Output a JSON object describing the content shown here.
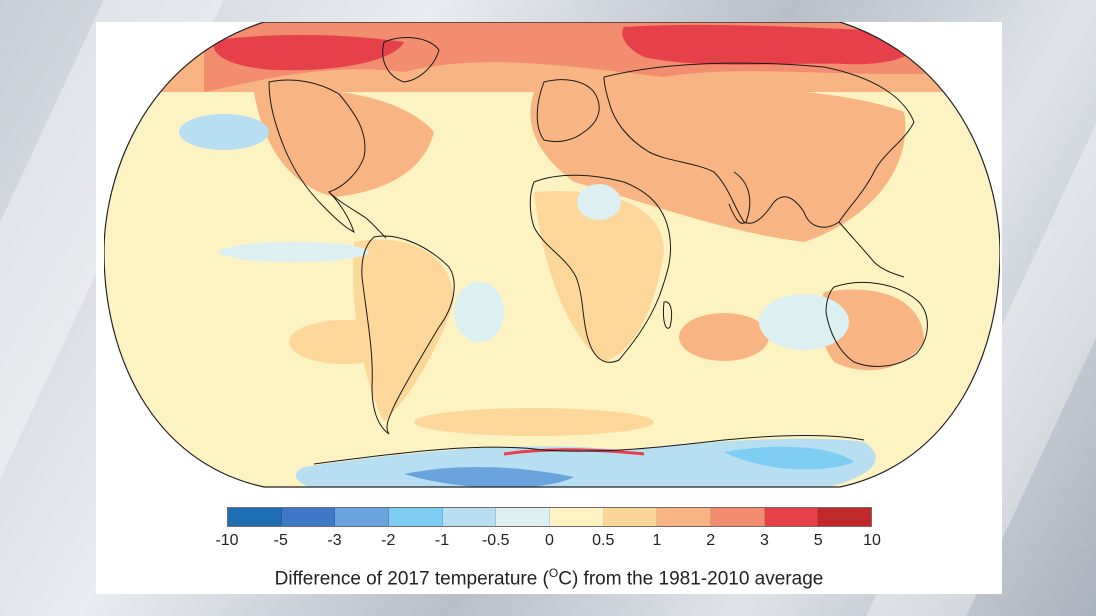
{
  "legend": {
    "colors": [
      "#1f6fb2",
      "#3f78c6",
      "#6aa3de",
      "#7ecdf2",
      "#b7def1",
      "#dcf0f2",
      "#fdf2c2",
      "#fdd79a",
      "#f8b483",
      "#f28d70",
      "#e6404b",
      "#c0282a"
    ],
    "ticks": [
      "-10",
      "-5",
      "-3",
      "-2",
      "-1",
      "-0.5",
      "0",
      "0.5",
      "1",
      "2",
      "3",
      "5",
      "10"
    ]
  },
  "caption": {
    "prefix": "Difference of 2017 temperature (",
    "superscript": "O",
    "unit_suffix": "C) from the 1981-2010 average"
  },
  "map": {
    "projection": "Robinson",
    "ocean_color": "#fdf2c2",
    "warm_color": "#f8b483",
    "hot_color": "#e6404b",
    "cool_color": "#b7def1",
    "coastline_color": "#1a1a1a"
  }
}
